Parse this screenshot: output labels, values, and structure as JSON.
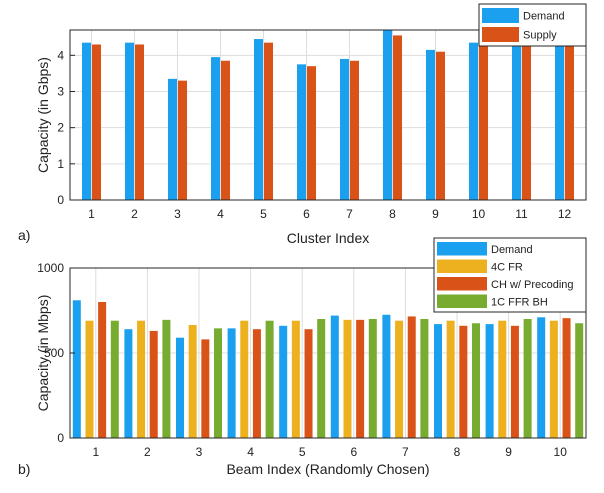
{
  "panels": [
    {
      "label": "a)"
    },
    {
      "label": "b)"
    }
  ],
  "chart_data": [
    {
      "type": "bar",
      "xlabel": "Cluster Index",
      "ylabel": "Capacity (in Gbps)",
      "ylim": [
        0,
        4.7
      ],
      "yticks": [
        0,
        1,
        2,
        3,
        4
      ],
      "grid": true,
      "legend_position": "top-right",
      "categories": [
        "1",
        "2",
        "3",
        "4",
        "5",
        "6",
        "7",
        "8",
        "9",
        "10",
        "11",
        "12"
      ],
      "series": [
        {
          "name": "Demand",
          "color": "#1aa0ee",
          "values": [
            4.35,
            4.35,
            3.35,
            3.95,
            4.45,
            3.75,
            3.9,
            4.7,
            4.15,
            4.35,
            4.3,
            4.45
          ]
        },
        {
          "name": "Supply",
          "color": "#d95319",
          "values": [
            4.3,
            4.3,
            3.3,
            3.85,
            4.35,
            3.7,
            3.85,
            4.55,
            4.1,
            4.3,
            4.25,
            4.4
          ]
        }
      ]
    },
    {
      "type": "bar",
      "xlabel": "Beam Index (Randomly Chosen)",
      "ylabel": "Capacity (in Mbps)",
      "ylim": [
        0,
        1000
      ],
      "yticks": [
        0,
        500,
        1000
      ],
      "grid": true,
      "legend_position": "top-right",
      "categories": [
        "1",
        "2",
        "3",
        "4",
        "5",
        "6",
        "7",
        "8",
        "9",
        "10"
      ],
      "series": [
        {
          "name": "Demand",
          "color": "#1aa0ee",
          "values": [
            810,
            640,
            590,
            645,
            660,
            720,
            725,
            670,
            670,
            710
          ]
        },
        {
          "name": "4C FR",
          "color": "#edb120",
          "values": [
            690,
            690,
            665,
            690,
            690,
            695,
            690,
            690,
            690,
            690
          ]
        },
        {
          "name": "CH w/ Precoding",
          "color": "#d95319",
          "values": [
            800,
            630,
            580,
            640,
            640,
            695,
            715,
            660,
            660,
            705
          ]
        },
        {
          "name": "1C FFR BH",
          "color": "#77ac30",
          "values": [
            690,
            695,
            645,
            690,
            700,
            700,
            700,
            675,
            700,
            675
          ]
        }
      ]
    }
  ]
}
